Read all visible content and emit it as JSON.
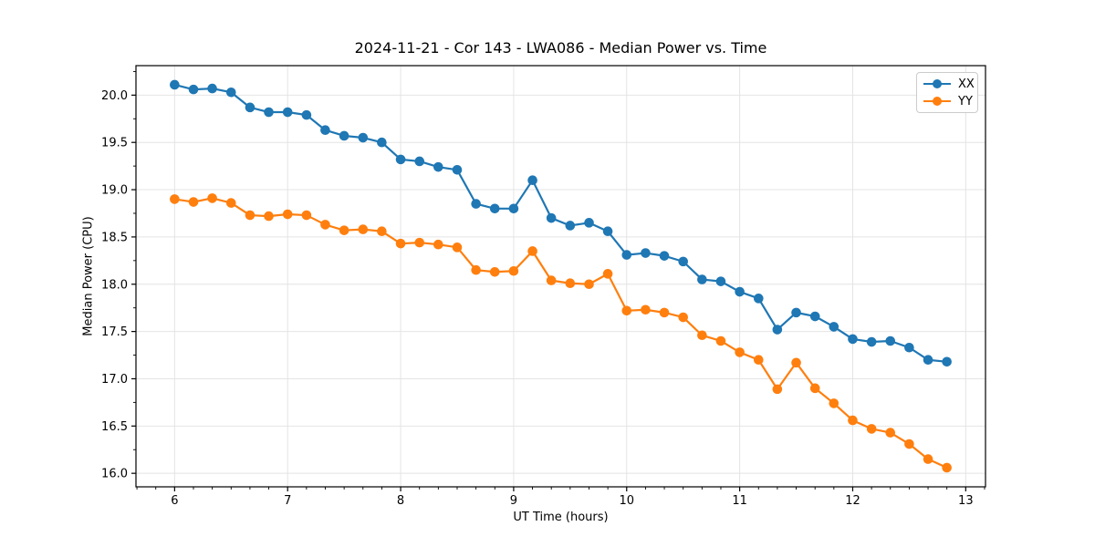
{
  "chart_data": {
    "type": "line",
    "title": "2024-11-21 - Cor 143 - LWA086 - Median Power vs. Time",
    "xlabel": "UT Time (hours)",
    "ylabel": "Median Power (CPU)",
    "xlim": [
      5.658,
      13.175
    ],
    "ylim": [
      15.857,
      20.312
    ],
    "xticks": [
      6,
      7,
      8,
      9,
      10,
      11,
      12,
      13
    ],
    "xtick_labels": [
      "6",
      "7",
      "8",
      "9",
      "10",
      "11",
      "12",
      "13"
    ],
    "yticks": [
      16.0,
      16.5,
      17.0,
      17.5,
      18.0,
      18.5,
      19.0,
      19.5,
      20.0
    ],
    "ytick_labels": [
      "16.0",
      "16.5",
      "17.0",
      "17.5",
      "18.0",
      "18.5",
      "19.0",
      "19.5",
      "20.0"
    ],
    "minor_xticks_per_major": 6,
    "minor_yticks_per_major": 2,
    "grid": true,
    "grid_color": "#e4e4e4",
    "spine_color": "#000000",
    "legend_position": "upper right",
    "x": [
      6.0,
      6.167,
      6.333,
      6.5,
      6.667,
      6.833,
      7.0,
      7.167,
      7.333,
      7.5,
      7.667,
      7.833,
      8.0,
      8.167,
      8.333,
      8.5,
      8.667,
      8.833,
      9.0,
      9.167,
      9.333,
      9.5,
      9.667,
      9.833,
      10.0,
      10.167,
      10.333,
      10.5,
      10.667,
      10.833,
      11.0,
      11.167,
      11.333,
      11.5,
      11.667,
      11.833,
      12.0,
      12.167,
      12.333,
      12.5,
      12.667,
      12.833
    ],
    "series": [
      {
        "name": "XX",
        "color": "#1f77b4",
        "marker": "circle",
        "values": [
          20.11,
          20.06,
          20.07,
          20.03,
          19.87,
          19.82,
          19.82,
          19.79,
          19.63,
          19.57,
          19.55,
          19.5,
          19.32,
          19.3,
          19.24,
          19.21,
          18.85,
          18.8,
          18.8,
          19.1,
          18.7,
          18.62,
          18.65,
          18.56,
          18.31,
          18.33,
          18.3,
          18.24,
          18.05,
          18.03,
          17.92,
          17.85,
          17.52,
          17.7,
          17.66,
          17.55,
          17.42,
          17.39,
          17.4,
          17.33,
          17.2,
          17.18
        ]
      },
      {
        "name": "YY",
        "color": "#ff7f0e",
        "marker": "circle",
        "values": [
          18.9,
          18.87,
          18.91,
          18.86,
          18.73,
          18.72,
          18.74,
          18.73,
          18.63,
          18.57,
          18.58,
          18.56,
          18.43,
          18.44,
          18.42,
          18.39,
          18.15,
          18.13,
          18.14,
          18.35,
          18.04,
          18.01,
          18.0,
          18.11,
          17.72,
          17.73,
          17.7,
          17.65,
          17.46,
          17.4,
          17.28,
          17.2,
          16.89,
          17.17,
          16.9,
          16.74,
          16.56,
          16.47,
          16.43,
          16.31,
          16.15,
          16.06
        ]
      }
    ]
  }
}
